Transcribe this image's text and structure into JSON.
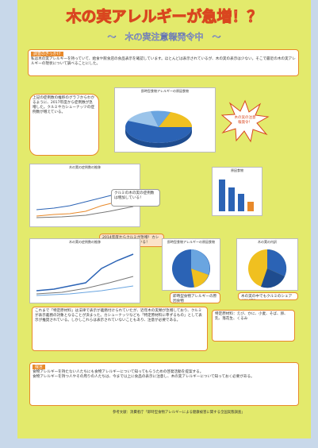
{
  "header": {
    "title": "木の実アレルギーが急増！？",
    "subtitle": "〜　木の実注意報発令中　〜"
  },
  "intro": {
    "heading": "調査のきっかけ",
    "text": "私は木の実アレルギーを持っていて、給食や飲食店の食品表示を確認しています。ほとんどは表示されているが、木の実の表示は少ない。そこで最近の木の実アレルギーの現状について調べることにした。"
  },
  "left_note": "上記の症例数の推移のグラフからわかるように、2017年度から症例数が急増した。クルミやカシューナッツの症例数が増えている。",
  "starburst": "木の実の注意報発令！",
  "callouts": [
    "クルミの木の実の症例数は増加している！",
    "2014年度からクルミが急増！カシューナッツも増加している！",
    "即時型食物アレルギーの原因食物",
    "木の実の中でもクルミのシェアが約6割！"
  ],
  "chart_titles": [
    "即時型食物アレルギーの原因食物",
    "木の実の症例数の推移",
    "木の実の症例数の推移",
    "原因食物",
    "木の実の内訳"
  ],
  "conclusion": "これまで「特定原材料」は法律で表示が義務付けられていたが、近年木の実類が急増しており、クルミが表示義務の対象となることが決まった。カシューナッツなども「特定原材料に準ずるもの」として表示が推奨されている。しかしこれらは表示されていないこともあり、注意が必要である。",
  "side_note": "特定原材料：えび、かに、小麦、そば、卵、乳、落花生、くるみ",
  "proposal": {
    "heading": "提言",
    "items": [
      "食物アレルギーを持たない人たちにも食物アレルギーについて知ってもらうための啓発活動を提案する。",
      "食物アレルギーを持つ人やその周りの人たちは、今まで以上に食品の表示に注意し、木の実アレルギーについて知っておく必要がある。"
    ]
  },
  "references": "参考文献：消費者庁「即時型食物アレルギーによる健康被害に関する全国実態調査」"
}
